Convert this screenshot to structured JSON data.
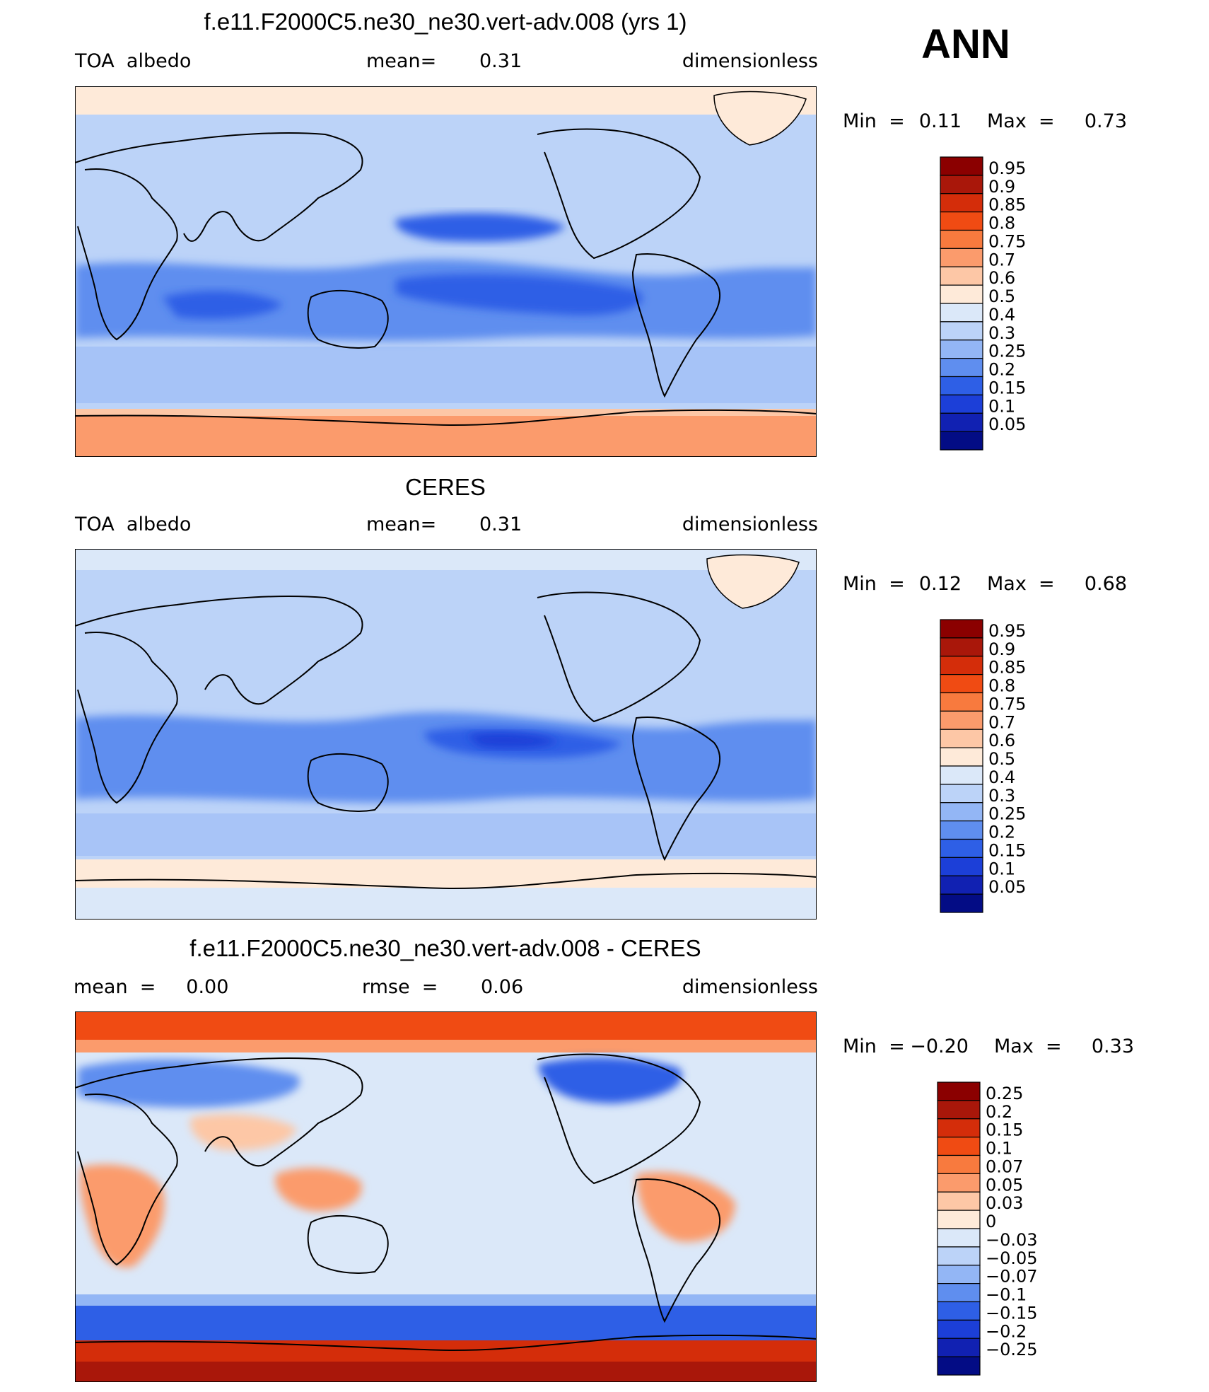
{
  "season": "ANN",
  "panels": [
    {
      "id": "model",
      "title": "f.e11.F2000C5.ne30_ne30.vert-adv.008 (yrs 1)",
      "left": "TOA  albedo",
      "center_label": "mean=",
      "center_value": "0.31",
      "right": "dimensionless",
      "min_label": "Min  =",
      "min_value": "0.11",
      "max_label": "Max  =",
      "max_value": "0.73",
      "colorbar": {
        "levels": [
          "0.95",
          "0.9",
          "0.85",
          "0.8",
          "0.75",
          "0.7",
          "0.6",
          "0.5",
          "0.4",
          "0.3",
          "0.25",
          "0.2",
          "0.15",
          "0.1",
          "0.05"
        ],
        "colors": [
          "#8b0000",
          "#a9170a",
          "#d42d0a",
          "#f04b13",
          "#f87a3e",
          "#fb9b6c",
          "#fdc7a6",
          "#feead9",
          "#dbe8f9",
          "#bcd3f8",
          "#93b6f5",
          "#5f8eef",
          "#2e5fe6",
          "#1c3fd8",
          "#1121b2",
          "#030c85"
        ]
      }
    },
    {
      "id": "obs",
      "title": "CERES",
      "left": "TOA  albedo",
      "center_label": "mean=",
      "center_value": "0.31",
      "right": "dimensionless",
      "min_label": "Min  =",
      "min_value": "0.12",
      "max_label": "Max  =",
      "max_value": "0.68",
      "colorbar": {
        "levels": [
          "0.95",
          "0.9",
          "0.85",
          "0.8",
          "0.75",
          "0.7",
          "0.6",
          "0.5",
          "0.4",
          "0.3",
          "0.25",
          "0.2",
          "0.15",
          "0.1",
          "0.05"
        ],
        "colors": [
          "#8b0000",
          "#a9170a",
          "#d42d0a",
          "#f04b13",
          "#f87a3e",
          "#fb9b6c",
          "#fdc7a6",
          "#feead9",
          "#dbe8f9",
          "#bcd3f8",
          "#93b6f5",
          "#5f8eef",
          "#2e5fe6",
          "#1c3fd8",
          "#1121b2",
          "#030c85"
        ]
      }
    },
    {
      "id": "diff",
      "title": "f.e11.F2000C5.ne30_ne30.vert-adv.008 - CERES",
      "left": "mean  =     0.00",
      "center_label": "rmse  =",
      "center_value": "0.06",
      "right": "dimensionless",
      "min_label": "Min  =",
      "min_value": "−0.20",
      "max_label": "Max  =",
      "max_value": "0.33",
      "colorbar": {
        "levels": [
          "0.25",
          "0.2",
          "0.15",
          "0.1",
          "0.07",
          "0.05",
          "0.03",
          "0",
          "−0.03",
          "−0.05",
          "−0.07",
          "−0.1",
          "−0.15",
          "−0.2",
          "−0.25"
        ],
        "colors": [
          "#8b0000",
          "#a9170a",
          "#d42d0a",
          "#f04b13",
          "#f87a3e",
          "#fb9b6c",
          "#fdc7a6",
          "#feead9",
          "#dbe8f9",
          "#bcd3f8",
          "#93b6f5",
          "#5f8eef",
          "#2e5fe6",
          "#1c3fd8",
          "#1121b2",
          "#030c85"
        ]
      }
    }
  ]
}
